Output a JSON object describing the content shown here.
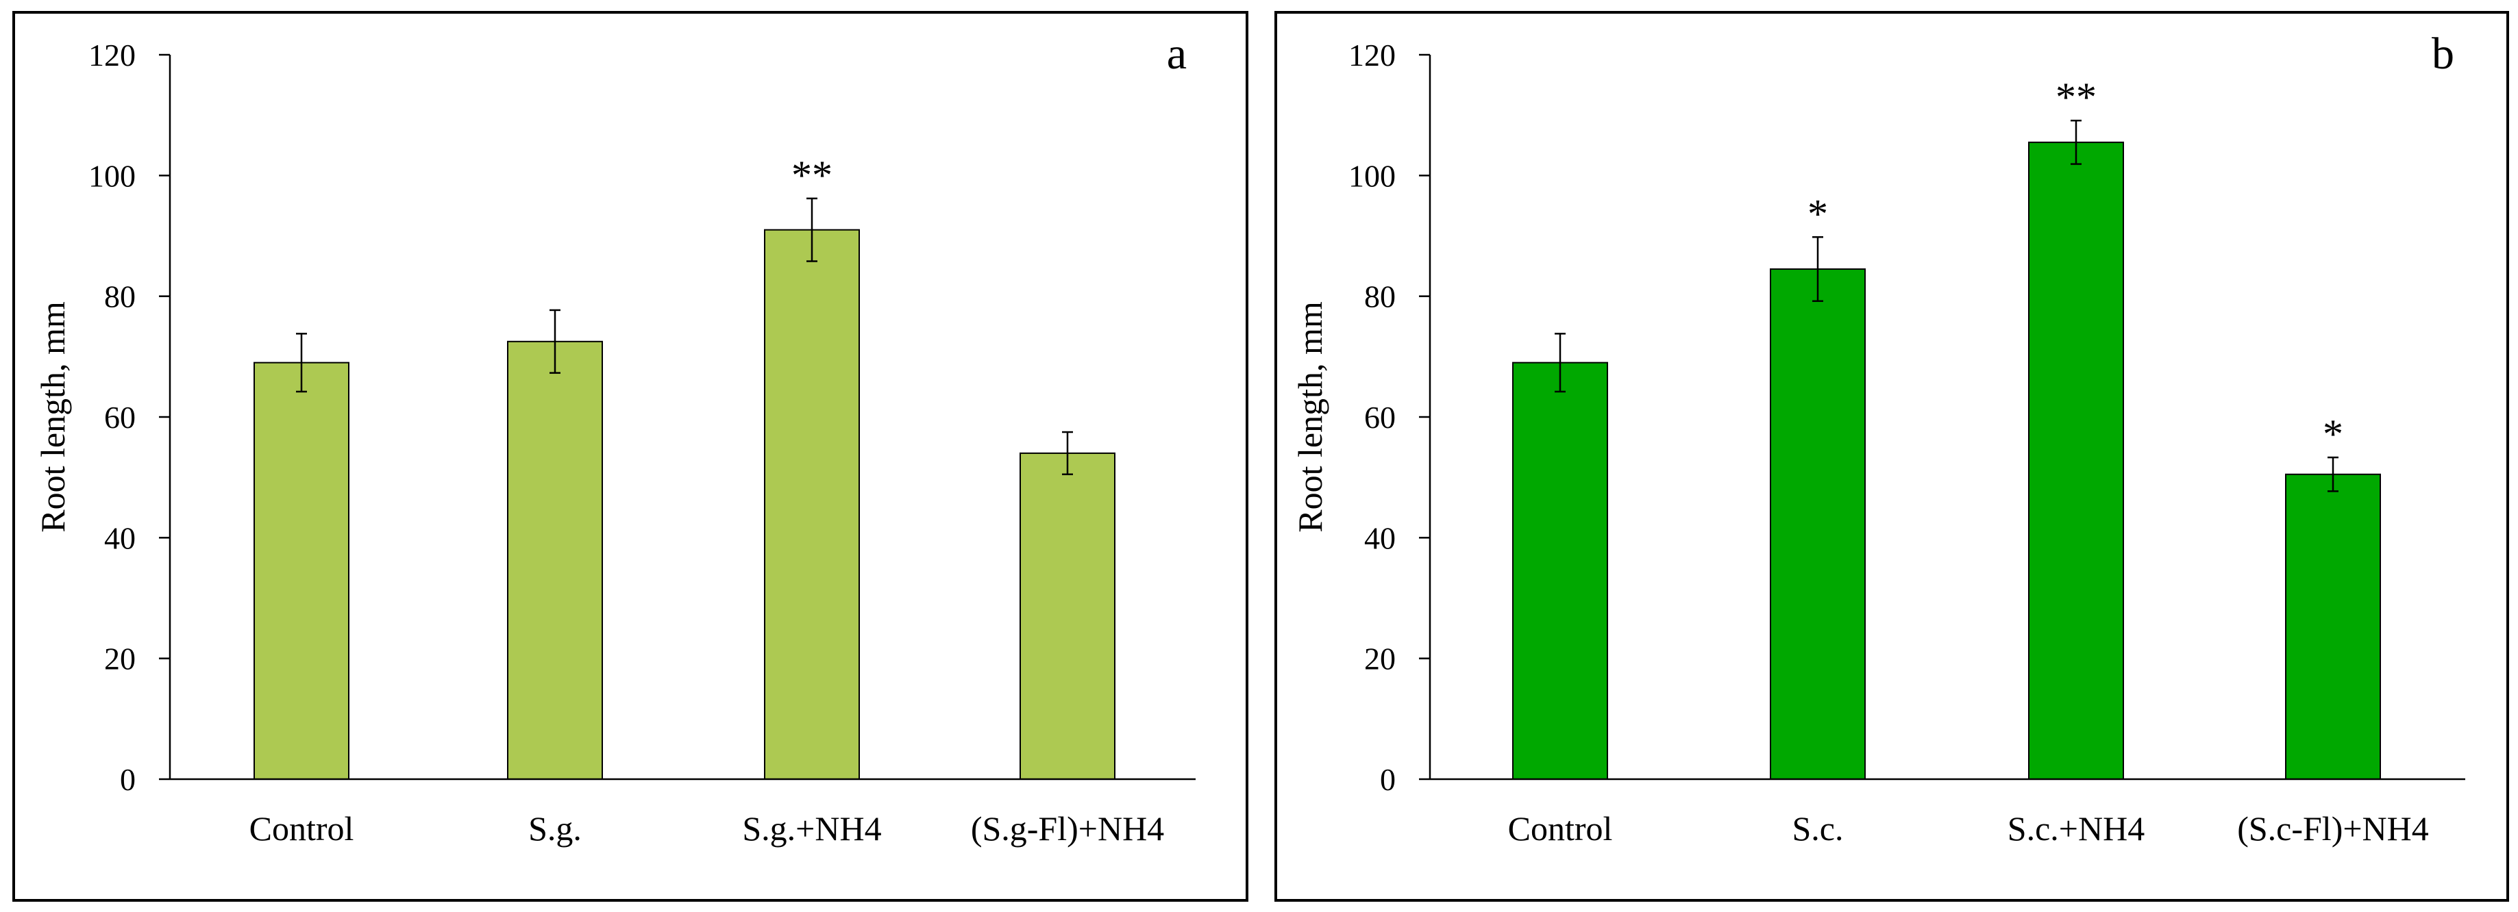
{
  "chart_data": [
    {
      "panel_label": "a",
      "type": "bar",
      "ylabel": "Root length, mm",
      "ylim": [
        0,
        120
      ],
      "yticks": [
        0,
        20,
        40,
        60,
        80,
        100,
        120
      ],
      "ytick_labels": [
        "0",
        "20",
        "40",
        "60",
        "80",
        "100",
        "120"
      ],
      "categories": [
        "Control",
        "S.g.",
        "S.g.+NH4",
        "(S.g-Fl)+NH4"
      ],
      "values": [
        69,
        72.5,
        91,
        54
      ],
      "errors": [
        4.8,
        5.2,
        5.2,
        3.5
      ],
      "significance": [
        "",
        "",
        "**",
        ""
      ],
      "bar_color": "#adc952"
    },
    {
      "panel_label": "b",
      "type": "bar",
      "ylabel": "Root length, mm",
      "ylim": [
        0,
        120
      ],
      "yticks": [
        0,
        20,
        40,
        60,
        80,
        100,
        120
      ],
      "ytick_labels": [
        "0",
        "20",
        "40",
        "60",
        "80",
        "100",
        "120"
      ],
      "categories": [
        "Control",
        "S.c.",
        "S.c.+NH4",
        "(S.c-Fl)+NH4"
      ],
      "values": [
        69,
        84.5,
        105.5,
        50.5
      ],
      "errors": [
        4.8,
        5.3,
        3.6,
        2.8
      ],
      "significance": [
        "*",
        "**",
        "*"
      ],
      "significance_indices": [
        1,
        2,
        3
      ],
      "bar_color": "#00a800"
    }
  ]
}
